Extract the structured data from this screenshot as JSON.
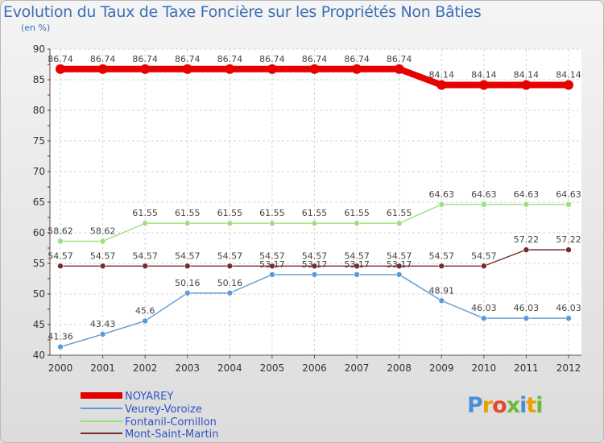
{
  "chart_data": {
    "type": "line",
    "title": "Evolution du Taux de Taxe Foncière sur les Propriétés Non Bâties",
    "subtitle": "(en %)",
    "x": [
      "2000",
      "2001",
      "2002",
      "2003",
      "2004",
      "2005",
      "2006",
      "2007",
      "2008",
      "2009",
      "2010",
      "2011",
      "2012"
    ],
    "ylim": [
      40,
      90
    ],
    "yticks": [
      40,
      45,
      50,
      55,
      60,
      65,
      70,
      75,
      80,
      85,
      90
    ],
    "grid": true,
    "legend_position": "bottom-left",
    "series": [
      {
        "name": "NOYAREY",
        "color": "#e60000",
        "values": [
          86.74,
          86.74,
          86.74,
          86.74,
          86.74,
          86.74,
          86.74,
          86.74,
          86.74,
          84.14,
          84.14,
          84.14,
          84.14
        ],
        "labels": [
          "86.74",
          "86.74",
          "86.74",
          "86.74",
          "86.74",
          "86.74",
          "86.74",
          "86.74",
          "86.74",
          "84.14",
          "84.14",
          "84.14",
          "84.14"
        ]
      },
      {
        "name": "Veurey-Voroize",
        "color": "#5a9bd5",
        "values": [
          41.36,
          43.43,
          45.6,
          50.16,
          50.16,
          53.17,
          53.17,
          53.17,
          53.17,
          48.91,
          46.03,
          46.03,
          46.03
        ],
        "labels": [
          "41.36",
          "43.43",
          "45.6",
          "50.16",
          "50.16",
          "53.17",
          "53.17",
          "53.17",
          "53.17",
          "48.91",
          "46.03",
          "46.03",
          "46.03"
        ]
      },
      {
        "name": "Fontanil-Cornillon",
        "color": "#9be07a",
        "values": [
          58.62,
          58.62,
          61.55,
          61.55,
          61.55,
          61.55,
          61.55,
          61.55,
          61.55,
          64.63,
          64.63,
          64.63,
          64.63
        ],
        "labels": [
          "58.62",
          "58.62",
          "61.55",
          "61.55",
          "61.55",
          "61.55",
          "61.55",
          "61.55",
          "61.55",
          "64.63",
          "64.63",
          "64.63",
          "64.63"
        ]
      },
      {
        "name": "Mont-Saint-Martin",
        "color": "#7a2a2a",
        "values": [
          54.57,
          54.57,
          54.57,
          54.57,
          54.57,
          54.57,
          54.57,
          54.57,
          54.57,
          54.57,
          54.57,
          57.22,
          57.22
        ],
        "labels": [
          "54.57",
          "54.57",
          "54.57",
          "54.57",
          "54.57",
          "54.57",
          "54.57",
          "54.57",
          "54.57",
          "54.57",
          "54.57",
          "57.22",
          "57.22"
        ]
      }
    ]
  },
  "logo": {
    "text": "Proxiti",
    "letters": [
      "P",
      "r",
      "o",
      "x",
      "i",
      "t",
      "i"
    ],
    "colors": [
      "#4a90d9",
      "#e8a200",
      "#e24b2b",
      "#6bb93a",
      "#4a90d9",
      "#e8a200",
      "#6bb93a"
    ]
  }
}
